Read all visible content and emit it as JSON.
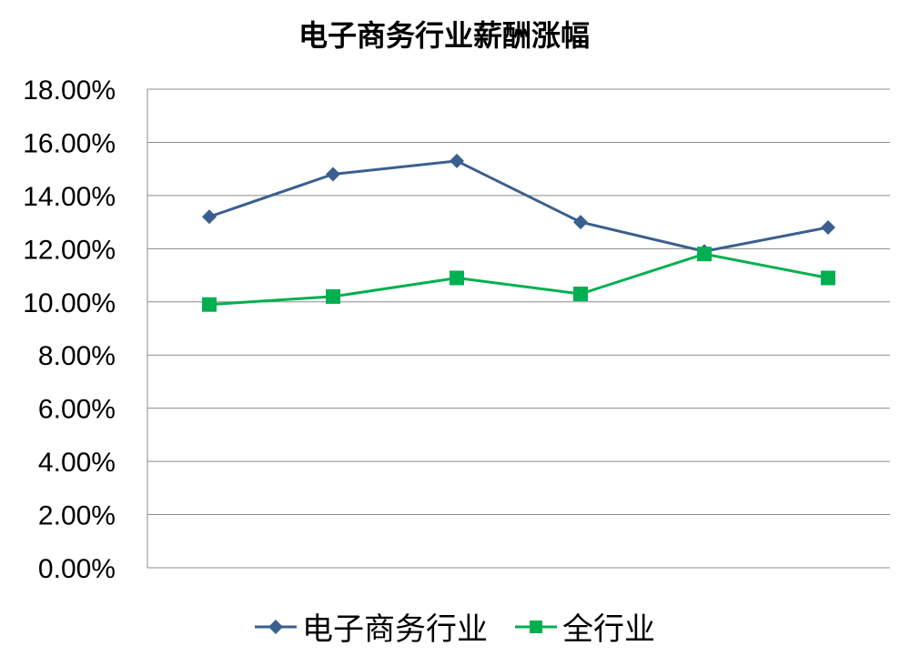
{
  "chart_data": {
    "type": "line",
    "title": "电子商务行业薪酬涨幅",
    "xlabel": "",
    "ylabel": "",
    "categories": [
      "",
      "",
      "",
      "",
      "",
      ""
    ],
    "ylim": [
      0,
      18
    ],
    "yticks": [
      0,
      2,
      4,
      6,
      8,
      10,
      12,
      14,
      16,
      18
    ],
    "ytick_labels": [
      "0.00%",
      "2.00%",
      "4.00%",
      "6.00%",
      "8.00%",
      "10.00%",
      "12.00%",
      "14.00%",
      "16.00%",
      "18.00%"
    ],
    "grid": true,
    "legend_position": "bottom",
    "series": [
      {
        "name": "电子商务行业",
        "values": [
          13.2,
          14.8,
          15.3,
          13.0,
          11.9,
          12.8
        ],
        "color": "#3A5F8F",
        "marker": "diamond"
      },
      {
        "name": "全行业",
        "values": [
          9.9,
          10.2,
          10.9,
          10.3,
          11.8,
          10.9
        ],
        "color": "#00B050",
        "marker": "square"
      }
    ]
  }
}
